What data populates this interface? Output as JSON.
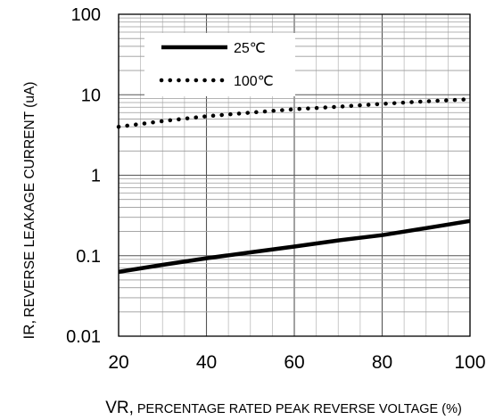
{
  "chart_data": {
    "type": "line",
    "x_label_prefix": "VR,",
    "x_label_rest": "PERCENTAGE RATED PEAK REVERSE VOLTAGE (%)",
    "y_label_prefix": "IR,",
    "y_label_rest": "REVERSE LEAKAGE CURRENT (uA)",
    "y_scale": "log",
    "xlim": [
      20,
      100
    ],
    "ylim": [
      0.01,
      100
    ],
    "x_ticks": [
      "20",
      "40",
      "60",
      "80",
      "100"
    ],
    "y_ticks": [
      "100",
      "10",
      "1",
      "0.1",
      "0.01"
    ],
    "grid": true,
    "legend_position": "top-left",
    "series": [
      {
        "name": "25℃",
        "style": "solid",
        "color": "#000000",
        "x": [
          20,
          30,
          40,
          50,
          60,
          70,
          80,
          90,
          100
        ],
        "y": [
          0.063,
          0.077,
          0.093,
          0.11,
          0.13,
          0.155,
          0.18,
          0.22,
          0.27
        ]
      },
      {
        "name": "100℃",
        "style": "dotted",
        "color": "#000000",
        "x": [
          20,
          30,
          40,
          50,
          60,
          70,
          80,
          90,
          100
        ],
        "y": [
          4.0,
          4.7,
          5.4,
          6.0,
          6.6,
          7.1,
          7.7,
          8.3,
          8.8
        ]
      }
    ]
  }
}
